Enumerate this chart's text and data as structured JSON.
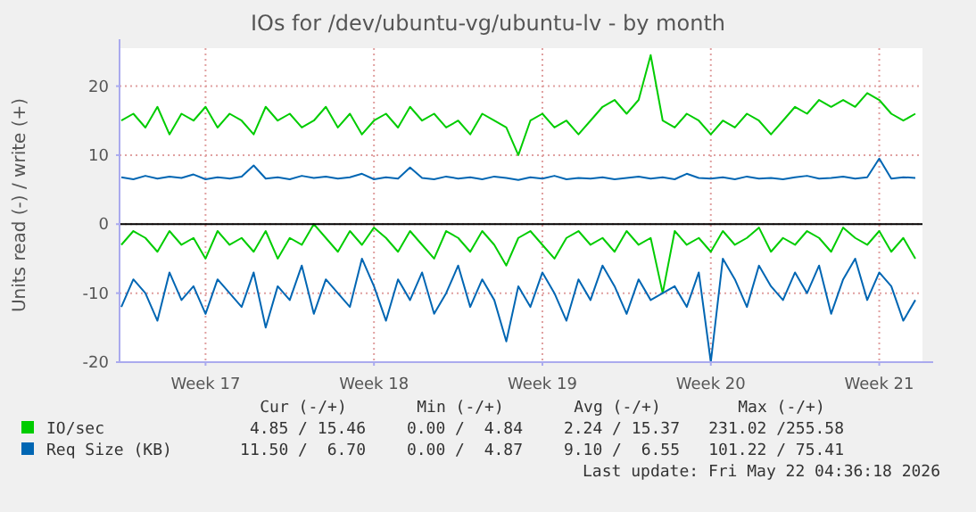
{
  "chart_data": {
    "type": "line",
    "title": "IOs for /dev/ubuntu-vg/ubuntu-lv - by month",
    "ylabel": "Units read (-) / write (+)",
    "categories": [
      null,
      null,
      null,
      null,
      null,
      null,
      null,
      "Week 17",
      null,
      null,
      null,
      null,
      null,
      null,
      null,
      null,
      null,
      null,
      null,
      null,
      null,
      "Week 18",
      null,
      null,
      null,
      null,
      null,
      null,
      null,
      null,
      null,
      null,
      null,
      null,
      null,
      "Week 19",
      null,
      null,
      null,
      null,
      null,
      null,
      null,
      null,
      null,
      null,
      null,
      null,
      null,
      "Week 20",
      null,
      null,
      null,
      null,
      null,
      null,
      null,
      null,
      null,
      null,
      null,
      null,
      null,
      "Week 21",
      null,
      null,
      null
    ],
    "series": [
      {
        "name": "IO/sec",
        "color": "#00cc00",
        "values": [
          15,
          16,
          14,
          17,
          13,
          16,
          15,
          17,
          14,
          16,
          15,
          13,
          17,
          15,
          16,
          14,
          15,
          17,
          14,
          16,
          13,
          15,
          16,
          14,
          17,
          15,
          16,
          14,
          15,
          13,
          16,
          15,
          14,
          10,
          15,
          16,
          14,
          15,
          13,
          15,
          17,
          18,
          16,
          18,
          24.5,
          15,
          14,
          16,
          15,
          13,
          15,
          14,
          16,
          15,
          13,
          15,
          17,
          16,
          18,
          17,
          18,
          17,
          19,
          18,
          16,
          15,
          16
        ]
      },
      {
        "color": "#00cc00",
        "values": [
          -3,
          -1,
          -2,
          -4,
          -1,
          -3,
          -2,
          -5,
          -1,
          -3,
          -2,
          -4,
          -1,
          -5,
          -2,
          -3,
          0,
          -2,
          -4,
          -1,
          -3,
          -0.5,
          -2,
          -4,
          -1,
          -3,
          -5,
          -1,
          -2,
          -4,
          -1,
          -3,
          -6,
          -2,
          -1,
          -3,
          -5,
          -2,
          -1,
          -3,
          -2,
          -4,
          -1,
          -3,
          -2,
          -10,
          -1,
          -3,
          -2,
          -4,
          -1,
          -3,
          -2,
          -0.5,
          -4,
          -2,
          -3,
          -1,
          -2,
          -4,
          -0.5,
          -2,
          -3,
          -1,
          -4,
          -2,
          -5
        ]
      },
      {
        "name": "Req Size (KB)",
        "color": "#0066b3",
        "values": [
          6.8,
          6.5,
          7,
          6.6,
          6.9,
          6.7,
          7.2,
          6.5,
          6.8,
          6.6,
          6.9,
          8.5,
          6.6,
          6.8,
          6.5,
          7,
          6.7,
          6.9,
          6.6,
          6.8,
          7.3,
          6.5,
          6.8,
          6.6,
          8.2,
          6.7,
          6.5,
          6.9,
          6.6,
          6.8,
          6.5,
          6.9,
          6.7,
          6.4,
          6.8,
          6.6,
          7,
          6.5,
          6.7,
          6.6,
          6.8,
          6.5,
          6.7,
          6.9,
          6.6,
          6.8,
          6.5,
          7.3,
          6.7,
          6.6,
          6.8,
          6.5,
          6.9,
          6.6,
          6.7,
          6.5,
          6.8,
          7,
          6.6,
          6.7,
          6.9,
          6.6,
          6.8,
          9.5,
          6.6,
          6.8,
          6.7
        ]
      },
      {
        "color": "#0066b3",
        "values": [
          -12,
          -8,
          -10,
          -14,
          -7,
          -11,
          -9,
          -13,
          -8,
          -10,
          -12,
          -7,
          -15,
          -9,
          -11,
          -6,
          -13,
          -8,
          -10,
          -12,
          -5,
          -9,
          -14,
          -8,
          -11,
          -7,
          -13,
          -10,
          -6,
          -12,
          -8,
          -11,
          -17,
          -9,
          -12,
          -7,
          -10,
          -14,
          -8,
          -11,
          -6,
          -9,
          -13,
          -8,
          -11,
          -10,
          -9,
          -12,
          -7,
          -20,
          -5,
          -8,
          -12,
          -6,
          -9,
          -11,
          -7,
          -10,
          -6,
          -13,
          -8,
          -5,
          -11,
          -7,
          -9,
          -14,
          -11
        ]
      }
    ],
    "ylim": [
      -20,
      25.5
    ],
    "yticks": [
      -20,
      -10,
      0,
      10,
      20
    ],
    "grid": true,
    "legend": "bottom",
    "line_style": "solid",
    "annotations": [
      "Cur (-/+)",
      "Min (-/+)",
      "Avg (-/+)",
      "Max (-/+)",
      "4.85 / 15.46",
      "0.00 /  4.84",
      "2.24 / 15.37",
      "231.02 /255.58",
      "11.50 /  6.70",
      "0.00 /  4.87",
      "9.10 /  6.55",
      "101.22 / 75.41",
      "Last update: Fri May 22 04:36:18 2026"
    ]
  }
}
